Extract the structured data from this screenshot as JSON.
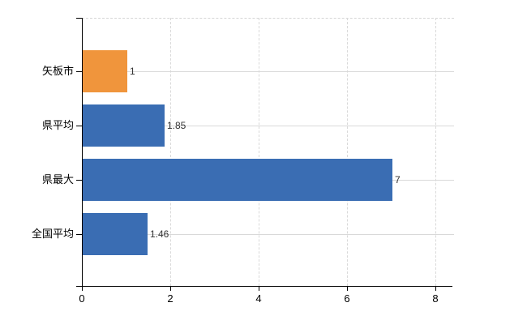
{
  "chart_data": {
    "type": "bar",
    "orientation": "horizontal",
    "title": "",
    "xlabel": "",
    "ylabel": "",
    "categories": [
      "矢板市",
      "県平均",
      "県最大",
      "全国平均"
    ],
    "values": [
      1,
      1.85,
      7,
      1.46
    ],
    "value_labels": [
      "1",
      "1.85",
      "7",
      "1.46"
    ],
    "bar_colors": [
      "#f0953c",
      "#3a6db3",
      "#3a6db3",
      "#3a6db3"
    ],
    "xlim": [
      0,
      8.5
    ],
    "x_ticks": [
      0,
      2,
      4,
      6,
      8
    ],
    "x_tick_labels": [
      "0",
      "2",
      "4",
      "6",
      "8"
    ],
    "grid": true,
    "legend": false
  },
  "colors": {
    "highlight_bar": "#f0953c",
    "default_bar": "#3a6db3",
    "axis": "#000000",
    "grid": "#d9d9d9",
    "value_label": "#333333",
    "tick_label": "#000000",
    "background": "#ffffff"
  }
}
